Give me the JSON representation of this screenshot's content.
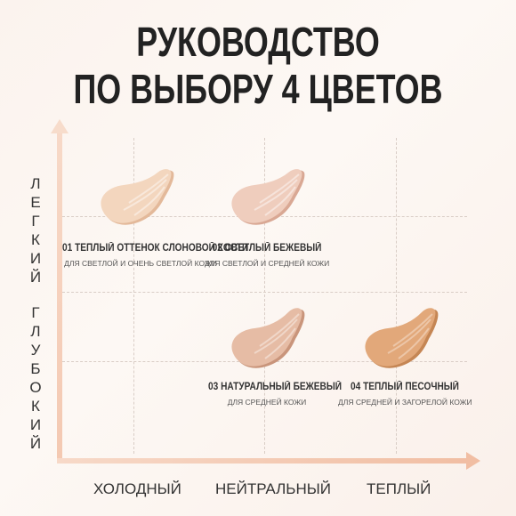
{
  "title": {
    "line1": "РУКОВОДСТВО",
    "line2": "ПО ВЫБОРУ 4 ЦВЕТОВ"
  },
  "y_axis": {
    "top_label": [
      "Л",
      "Е",
      "Г",
      "К",
      "И",
      "Й"
    ],
    "bottom_label": [
      "Г",
      "Л",
      "У",
      "Б",
      "О",
      "К",
      "И",
      "Й"
    ]
  },
  "x_axis": {
    "left": "ХОЛОДНЫЙ",
    "center": "НЕЙТРАЛЬНЫЙ",
    "right": "ТЕПЛЫЙ"
  },
  "shades": [
    {
      "title": "01 ТЕПЛЫЙ ОТТЕНОК СЛОНОВОЙ КОСТИ",
      "subtitle": "ДЛЯ СВЕТЛОЙ И ОЧЕНЬ СВЕТЛОЙ КОЖИ",
      "color": "#f3d6be",
      "shadow": "#e3b99a"
    },
    {
      "title": "02 СВЕТЛЫЙ БЕЖЕВЫЙ",
      "subtitle": "ДЛЯ СВЕТЛОЙ И СРЕДНЕЙ КОЖИ",
      "color": "#efcdbd",
      "shadow": "#d9a894"
    },
    {
      "title": "03 НАТУРАЛЬНЫЙ БЕЖЕВЫЙ",
      "subtitle": "ДЛЯ СРЕДНЕЙ КОЖИ",
      "color": "#e6bca5",
      "shadow": "#c9957b"
    },
    {
      "title": "04 ТЕПЛЫЙ ПЕСОЧНЫЙ",
      "subtitle": "ДЛЯ СРЕДНЕЙ И ЗАГОРЕЛОЙ КОЖИ",
      "color": "#e2a87a",
      "shadow": "#c58654"
    }
  ]
}
